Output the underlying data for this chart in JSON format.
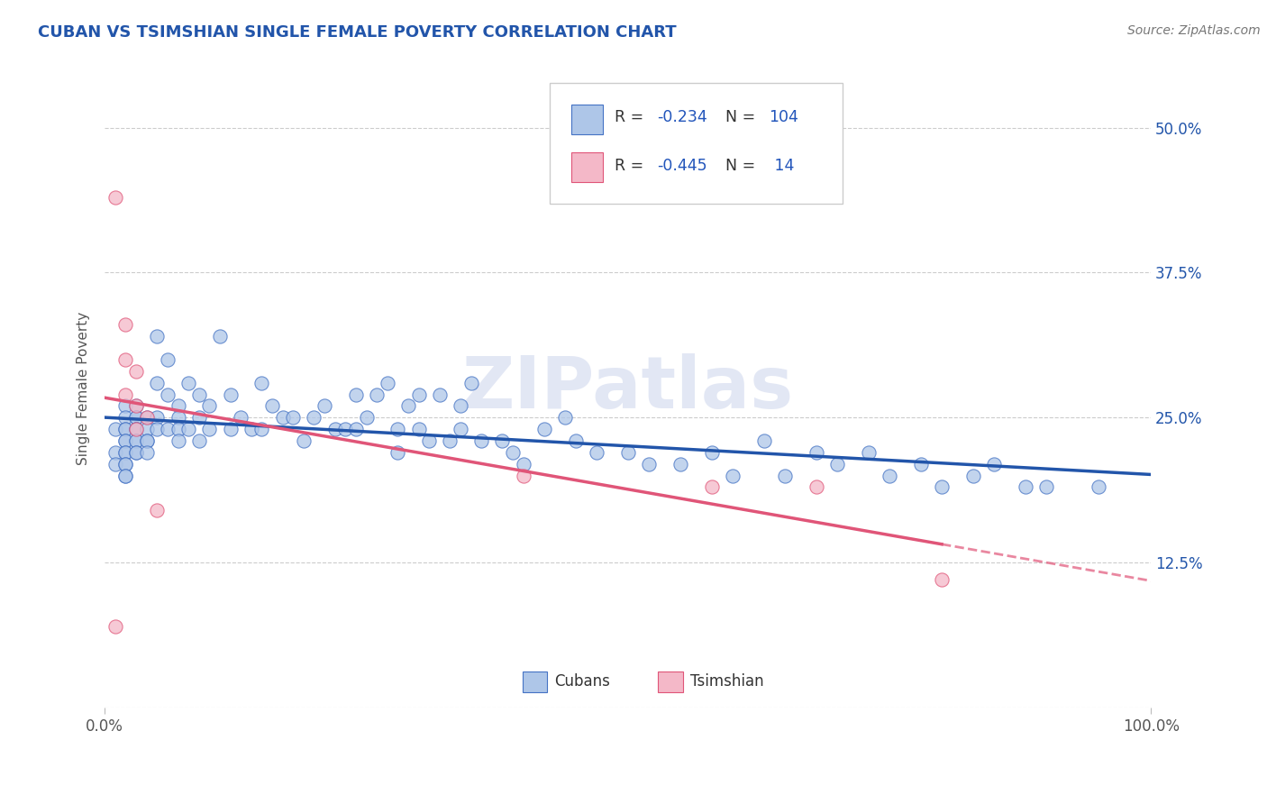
{
  "title": "CUBAN VS TSIMSHIAN SINGLE FEMALE POVERTY CORRELATION CHART",
  "source": "Source: ZipAtlas.com",
  "ylabel": "Single Female Poverty",
  "xlim": [
    0,
    1
  ],
  "ylim": [
    0,
    0.55
  ],
  "yticks": [
    0.0,
    0.125,
    0.25,
    0.375,
    0.5
  ],
  "ytick_labels": [
    "",
    "12.5%",
    "25.0%",
    "37.5%",
    "50.0%"
  ],
  "xtick_labels": [
    "0.0%",
    "100.0%"
  ],
  "blue_color": "#aec6e8",
  "blue_edge_color": "#4472c4",
  "pink_color": "#f4b8c8",
  "pink_edge_color": "#e05578",
  "blue_line_color": "#2255aa",
  "pink_line_color": "#e05578",
  "title_color": "#2255aa",
  "label_color": "#2255aa",
  "watermark": "ZIPatlas",
  "watermark_color": "#d0d8ee",
  "cubans_x": [
    0.01,
    0.01,
    0.01,
    0.02,
    0.02,
    0.02,
    0.02,
    0.02,
    0.02,
    0.02,
    0.02,
    0.02,
    0.02,
    0.02,
    0.02,
    0.03,
    0.03,
    0.03,
    0.03,
    0.03,
    0.03,
    0.03,
    0.03,
    0.03,
    0.04,
    0.04,
    0.04,
    0.04,
    0.04,
    0.05,
    0.05,
    0.05,
    0.05,
    0.06,
    0.06,
    0.06,
    0.07,
    0.07,
    0.07,
    0.07,
    0.08,
    0.08,
    0.09,
    0.09,
    0.09,
    0.1,
    0.1,
    0.11,
    0.12,
    0.12,
    0.13,
    0.14,
    0.15,
    0.15,
    0.16,
    0.17,
    0.18,
    0.19,
    0.2,
    0.21,
    0.22,
    0.23,
    0.24,
    0.24,
    0.25,
    0.26,
    0.27,
    0.28,
    0.28,
    0.29,
    0.3,
    0.3,
    0.31,
    0.32,
    0.33,
    0.34,
    0.34,
    0.35,
    0.36,
    0.38,
    0.39,
    0.4,
    0.42,
    0.44,
    0.45,
    0.47,
    0.5,
    0.52,
    0.55,
    0.58,
    0.6,
    0.63,
    0.65,
    0.68,
    0.7,
    0.73,
    0.75,
    0.78,
    0.8,
    0.83,
    0.85,
    0.88,
    0.9,
    0.95
  ],
  "cubans_y": [
    0.24,
    0.22,
    0.21,
    0.26,
    0.25,
    0.24,
    0.24,
    0.23,
    0.23,
    0.22,
    0.22,
    0.21,
    0.21,
    0.2,
    0.2,
    0.26,
    0.25,
    0.25,
    0.24,
    0.24,
    0.23,
    0.23,
    0.22,
    0.22,
    0.25,
    0.24,
    0.23,
    0.23,
    0.22,
    0.32,
    0.28,
    0.25,
    0.24,
    0.3,
    0.27,
    0.24,
    0.26,
    0.25,
    0.24,
    0.23,
    0.28,
    0.24,
    0.27,
    0.25,
    0.23,
    0.26,
    0.24,
    0.32,
    0.27,
    0.24,
    0.25,
    0.24,
    0.28,
    0.24,
    0.26,
    0.25,
    0.25,
    0.23,
    0.25,
    0.26,
    0.24,
    0.24,
    0.27,
    0.24,
    0.25,
    0.27,
    0.28,
    0.24,
    0.22,
    0.26,
    0.27,
    0.24,
    0.23,
    0.27,
    0.23,
    0.26,
    0.24,
    0.28,
    0.23,
    0.23,
    0.22,
    0.21,
    0.24,
    0.25,
    0.23,
    0.22,
    0.22,
    0.21,
    0.21,
    0.22,
    0.2,
    0.23,
    0.2,
    0.22,
    0.21,
    0.22,
    0.2,
    0.21,
    0.19,
    0.2,
    0.21,
    0.19,
    0.19,
    0.19
  ],
  "tsimshian_x": [
    0.01,
    0.01,
    0.02,
    0.02,
    0.02,
    0.03,
    0.03,
    0.03,
    0.04,
    0.05,
    0.4,
    0.58,
    0.68,
    0.8
  ],
  "tsimshian_y": [
    0.44,
    0.07,
    0.33,
    0.3,
    0.27,
    0.29,
    0.26,
    0.24,
    0.25,
    0.17,
    0.2,
    0.19,
    0.19,
    0.11
  ]
}
